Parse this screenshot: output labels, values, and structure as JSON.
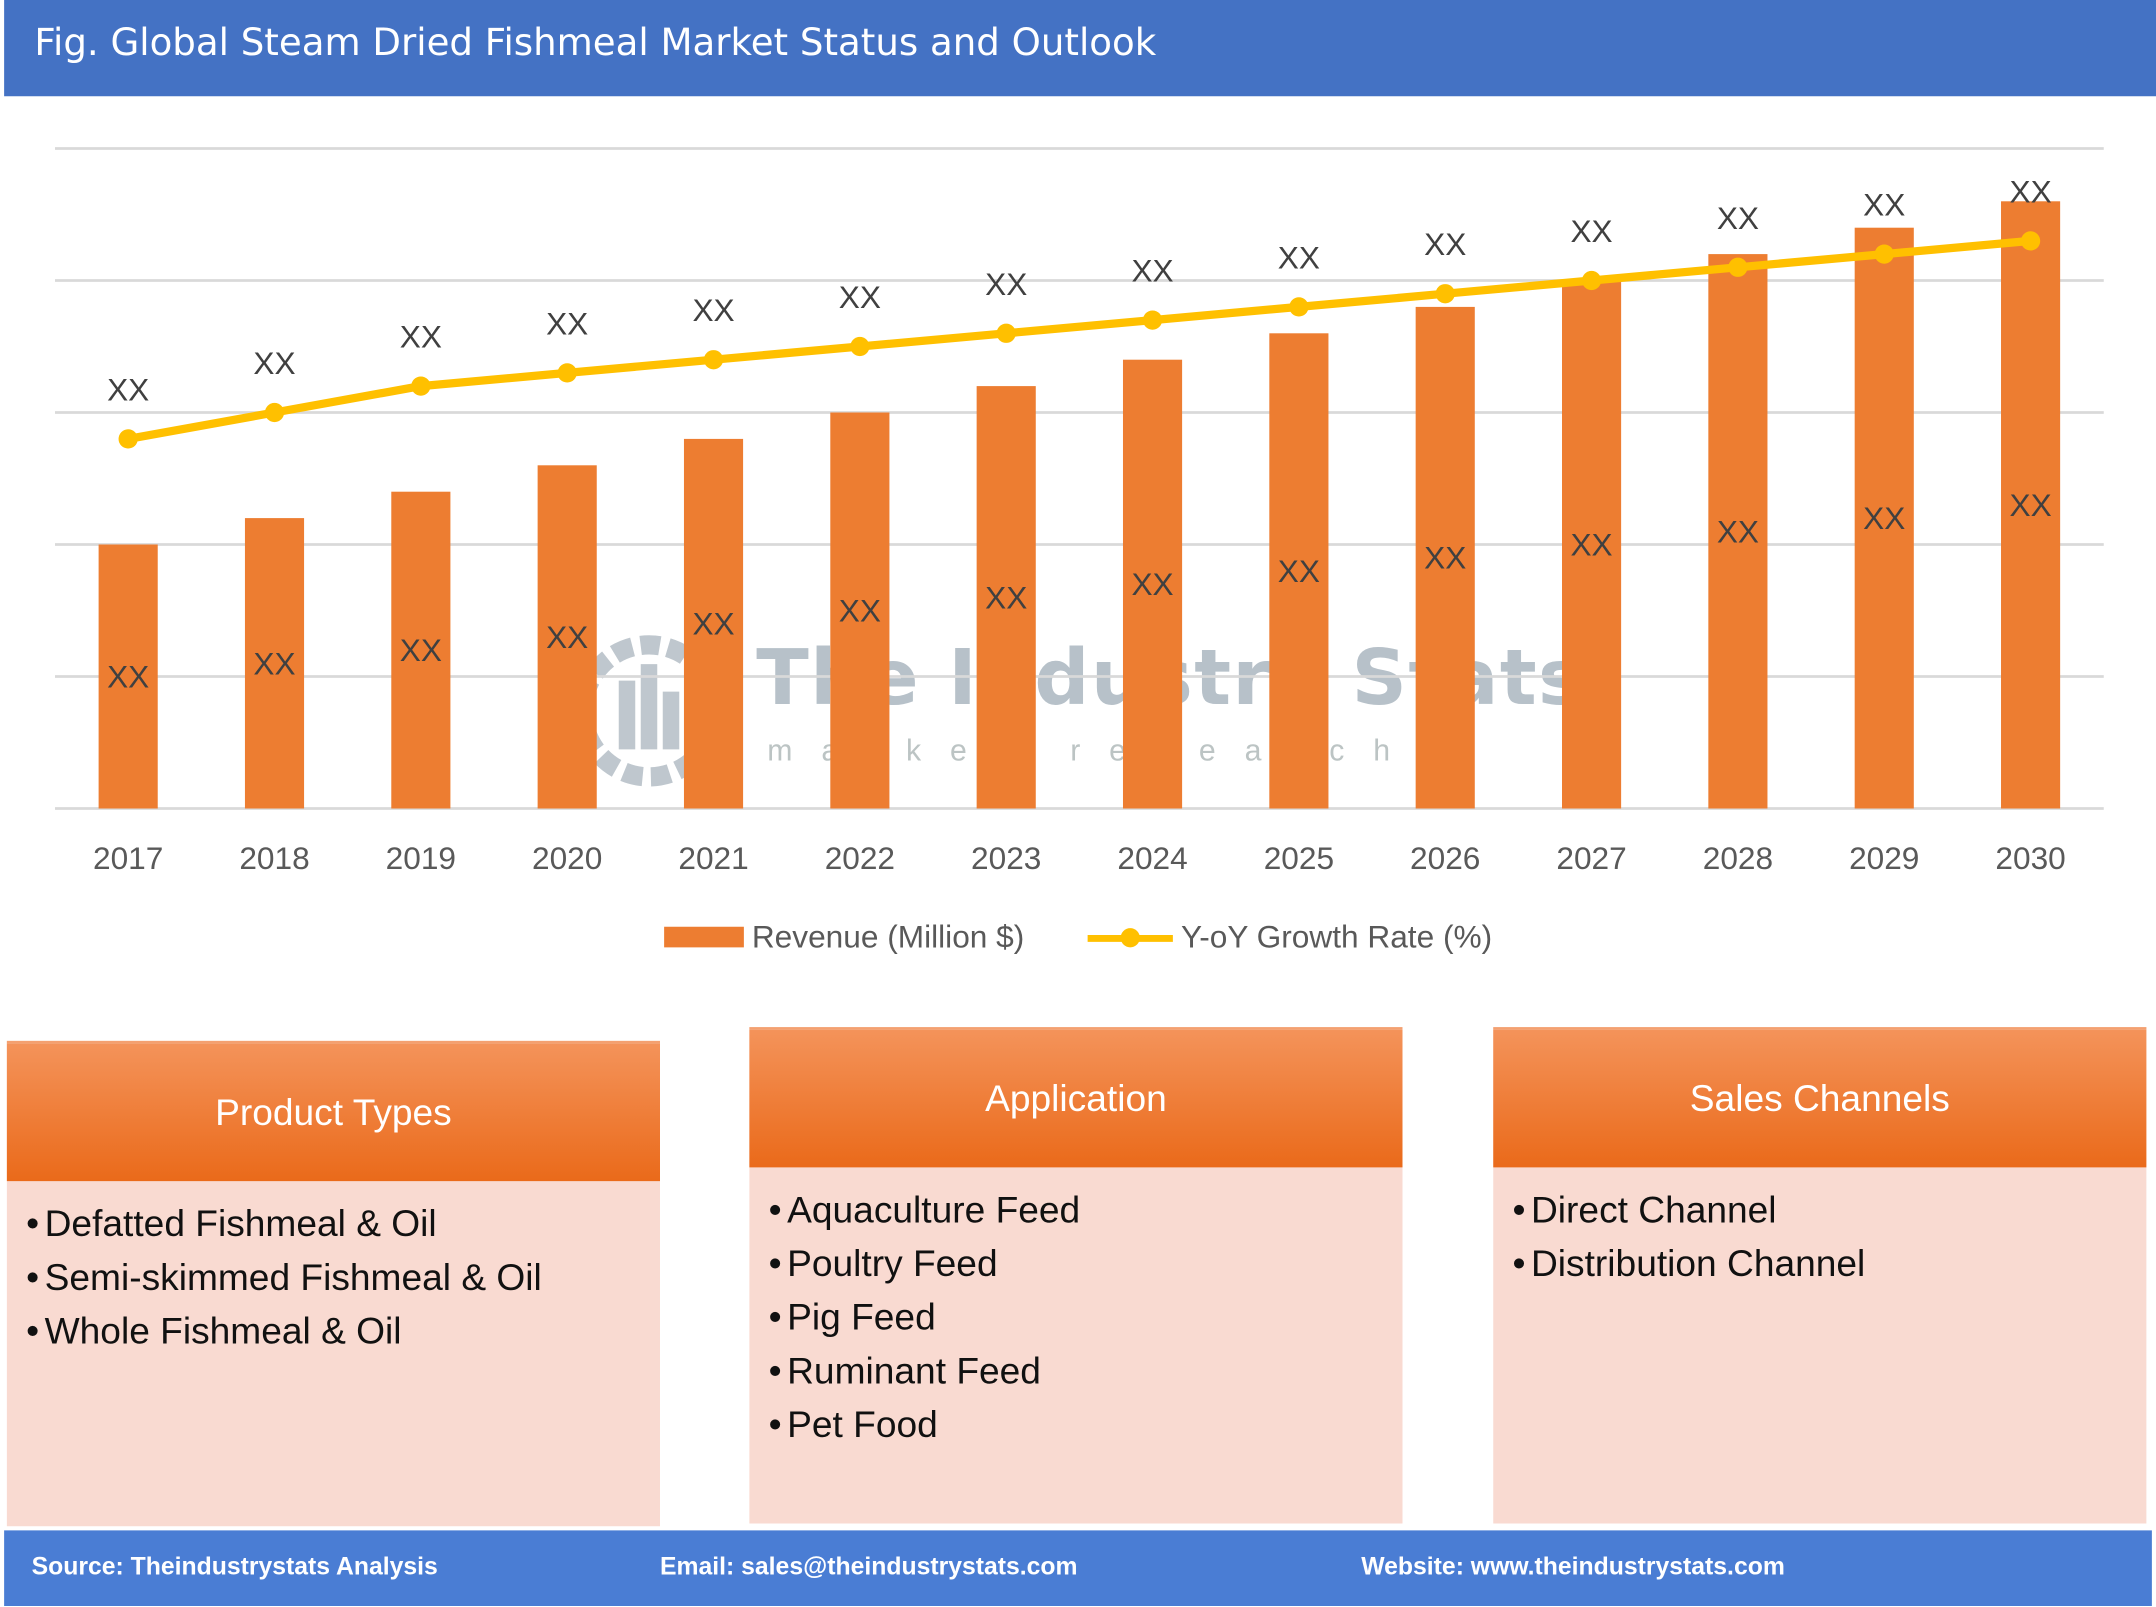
{
  "title": "Fig. Global Steam Dried Fishmeal Market Status and Outlook",
  "chart_data": {
    "type": "bar",
    "title": "",
    "categories": [
      "2017",
      "2018",
      "2019",
      "2020",
      "2021",
      "2022",
      "2023",
      "2024",
      "2025",
      "2026",
      "2027",
      "2028",
      "2029",
      "2030"
    ],
    "series": [
      {
        "name": "Revenue (Million $)",
        "type": "bar",
        "color": "#ed7d31",
        "values": [
          2.0,
          2.2,
          2.4,
          2.6,
          2.8,
          3.0,
          3.2,
          3.4,
          3.6,
          3.8,
          4.0,
          4.2,
          4.4,
          4.6
        ],
        "data_labels": [
          "XX",
          "XX",
          "XX",
          "XX",
          "XX",
          "XX",
          "XX",
          "XX",
          "XX",
          "XX",
          "XX",
          "XX",
          "XX",
          "XX"
        ]
      },
      {
        "name": "Y-oY Growth Rate (%)",
        "type": "line",
        "color": "#ffc000",
        "values": [
          2.8,
          3.0,
          3.2,
          3.3,
          3.4,
          3.5,
          3.6,
          3.7,
          3.8,
          3.9,
          4.0,
          4.1,
          4.2,
          4.3
        ],
        "data_labels": [
          "XX",
          "XX",
          "XX",
          "XX",
          "XX",
          "XX",
          "XX",
          "XX",
          "XX",
          "XX",
          "XX",
          "XX",
          "XX",
          "XX"
        ]
      }
    ],
    "ylim": [
      0,
      5
    ],
    "y_axis_labels_shown": false,
    "grid": true,
    "legend": "bottom"
  },
  "watermark": {
    "name": "The Industry Stats",
    "tagline": "market research"
  },
  "panels": [
    {
      "title": "Product Types",
      "items": [
        "Defatted Fishmeal & Oil",
        "Semi-skimmed Fishmeal & Oil",
        "Whole Fishmeal & Oil"
      ]
    },
    {
      "title": "Application",
      "items": [
        "Aquaculture Feed",
        "Poultry Feed",
        "Pig Feed",
        "Ruminant Feed",
        "Pet Food"
      ]
    },
    {
      "title": "Sales Channels",
      "items": [
        "Direct Channel",
        "Distribution Channel"
      ]
    }
  ],
  "footer": {
    "source": "Source: Theindustrystats Analysis",
    "email": "Email: sales@theindustrystats.com",
    "website": "Website: www.theindustrystats.com"
  }
}
